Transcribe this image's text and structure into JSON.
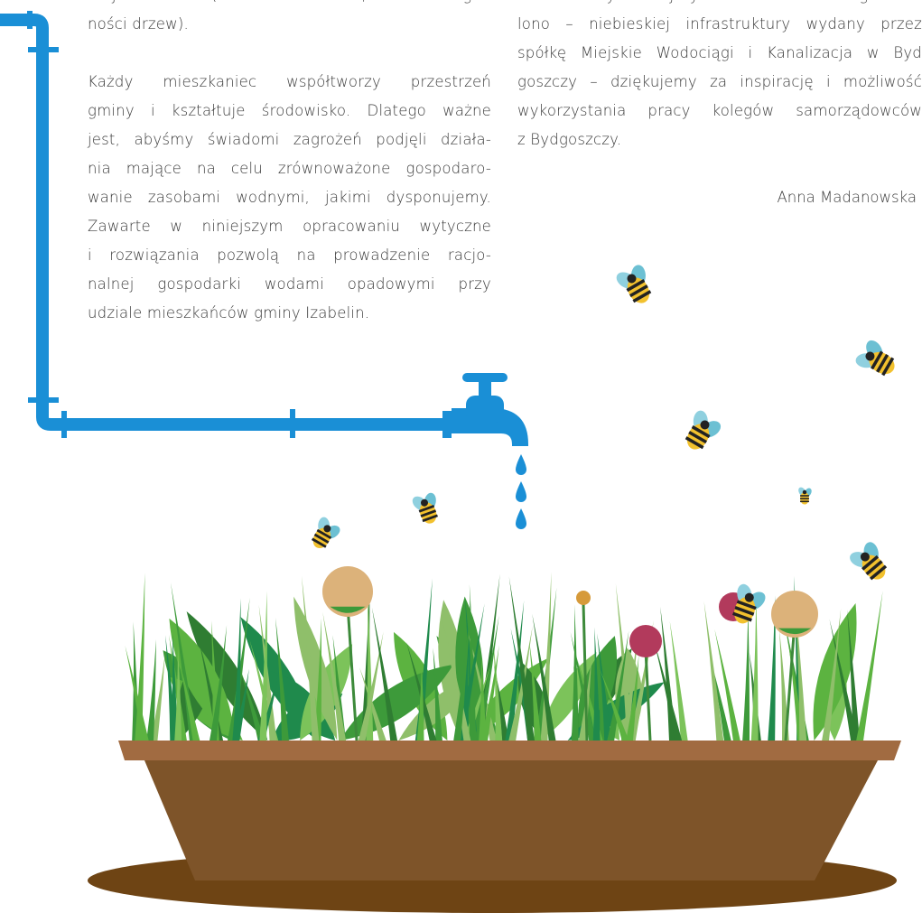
{
  "left_column": {
    "paragraphs": [
      [
        "krajobrazowe (zakwitanie roślin, w szczegól-",
        "ności drzew)."
      ],
      [
        "Każdy mieszkaniec współtworzy przestrzeń",
        "gminy i kształtuje środowisko. Dlatego ważne",
        "jest, abyśmy świadomi zagrożeń podjęli działa-",
        "nia mające na celu zrównoważone gospodaro-",
        "wanie zasobami wodnymi, jakimi dysponujemy.",
        "Zawarte w niniejszym opracowaniu wytyczne",
        "i rozwiązania pozwolą na prowadzenie racjo-",
        "nalnej gospodarki wodami opadowymi przy",
        "udziale mieszkańców gminy Izabelin."
      ]
    ]
  },
  "right_column": {
    "paragraphs": [
      [
        "bazowaliśmy niniejszy folder na katalogu zie-",
        "lono – niebieskiej infrastruktury wydany przez",
        "spółkę Miejskie Wodociągi i Kanalizacja w Byd",
        "goszczy – dziękujemy za inspirację i możliwość",
        "wykorzystania pracy kolegów samorządowców",
        "z Bydgoszczy."
      ]
    ],
    "signature": "Anna Madanowska"
  }
}
